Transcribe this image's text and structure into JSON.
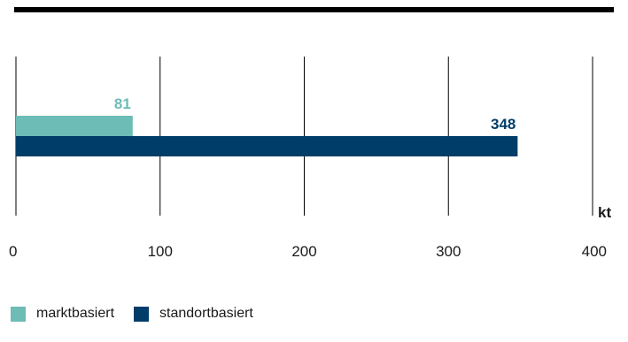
{
  "chart_data": {
    "type": "bar",
    "orientation": "horizontal",
    "unit": "kt",
    "xlim": [
      0,
      400
    ],
    "ticks": [
      0,
      100,
      200,
      300,
      400
    ],
    "grid": true,
    "legend_position": "bottom-left",
    "series": [
      {
        "name": "marktbasiert",
        "values": [
          81
        ],
        "color": "#6dbcb5",
        "label": "81"
      },
      {
        "name": "standortbasiert",
        "values": [
          348
        ],
        "color": "#003d68",
        "label": "348"
      }
    ]
  }
}
